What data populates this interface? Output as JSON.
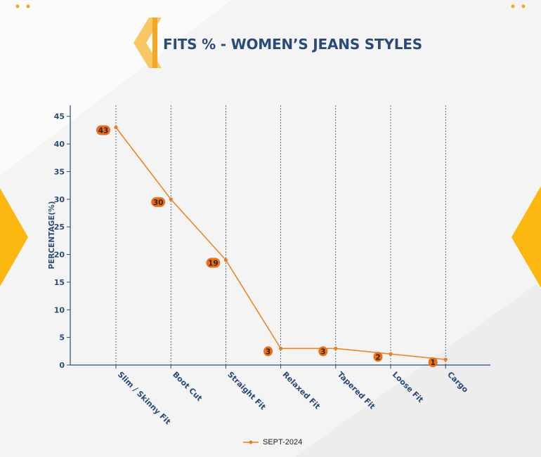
{
  "title": "FITS % - WOMEN’S JEANS STYLES",
  "colors": {
    "accent": "#f5a623",
    "accent_light": "#f9c866",
    "title": "#2c4a78",
    "series": "#f07f1a",
    "label_bg": "#e8721c",
    "axis": "#2c4a78",
    "side_triangle": "#fcb711"
  },
  "chart_data": {
    "type": "line",
    "categories": [
      "Slim / Skinny Fit",
      "Boot Cut",
      "Straight Fit",
      "Relaxed Fit",
      "Tapered Fit",
      "Loose Fit",
      "Cargo"
    ],
    "series": [
      {
        "name": "SEPT-2024",
        "values": [
          43,
          30,
          19,
          3,
          3,
          2,
          1
        ]
      }
    ],
    "data_labels": [
      "43",
      "30",
      "19",
      "3",
      "3",
      "2",
      "1"
    ],
    "ylabel": "PERCENTAGE(%)",
    "xlabel": "",
    "ylim": [
      0,
      47
    ],
    "yticks": [
      0,
      5,
      10,
      15,
      20,
      25,
      30,
      35,
      40,
      45
    ],
    "ytick_labels": [
      "0",
      "5",
      "10",
      "15",
      "20",
      "25",
      "30",
      "35",
      "40",
      "45"
    ],
    "grid": "vertical dashed",
    "legend_position": "bottom-center"
  }
}
